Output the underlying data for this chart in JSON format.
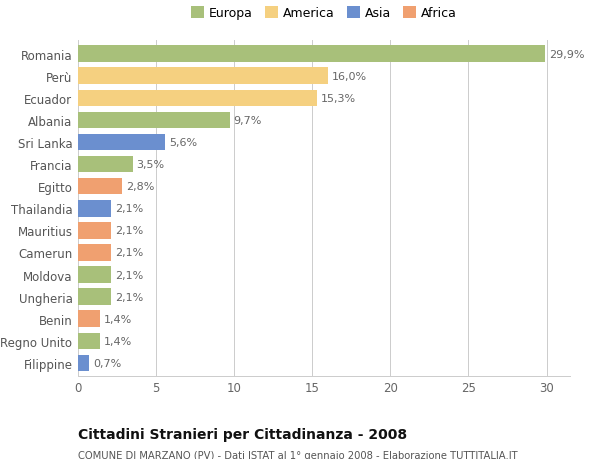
{
  "title": "Cittadini Stranieri per Cittadinanza - 2008",
  "subtitle": "COMUNE DI MARZANO (PV) - Dati ISTAT al 1° gennaio 2008 - Elaborazione TUTTITALIA.IT",
  "countries": [
    "Romania",
    "Perù",
    "Ecuador",
    "Albania",
    "Sri Lanka",
    "Francia",
    "Egitto",
    "Thailandia",
    "Mauritius",
    "Camerun",
    "Moldova",
    "Ungheria",
    "Benin",
    "Regno Unito",
    "Filippine"
  ],
  "values": [
    29.9,
    16.0,
    15.3,
    9.7,
    5.6,
    3.5,
    2.8,
    2.1,
    2.1,
    2.1,
    2.1,
    2.1,
    1.4,
    1.4,
    0.7
  ],
  "labels": [
    "29,9%",
    "16,0%",
    "15,3%",
    "9,7%",
    "5,6%",
    "3,5%",
    "2,8%",
    "2,1%",
    "2,1%",
    "2,1%",
    "2,1%",
    "2,1%",
    "1,4%",
    "1,4%",
    "0,7%"
  ],
  "colors": [
    "#a8c07a",
    "#f5d080",
    "#f5d080",
    "#a8c07a",
    "#6b8fcf",
    "#a8c07a",
    "#f0a070",
    "#6b8fcf",
    "#f0a070",
    "#f0a070",
    "#a8c07a",
    "#a8c07a",
    "#f0a070",
    "#a8c07a",
    "#6b8fcf"
  ],
  "legend_labels": [
    "Europa",
    "America",
    "Asia",
    "Africa"
  ],
  "legend_colors": [
    "#a8c07a",
    "#f5d080",
    "#6b8fcf",
    "#f0a070"
  ],
  "xlim": [
    0,
    31.5
  ],
  "xticks": [
    0,
    5,
    10,
    15,
    20,
    25,
    30
  ],
  "background_color": "#ffffff",
  "grid_color": "#cccccc",
  "bar_height": 0.75,
  "figsize": [
    6.0,
    4.6
  ],
  "dpi": 100
}
